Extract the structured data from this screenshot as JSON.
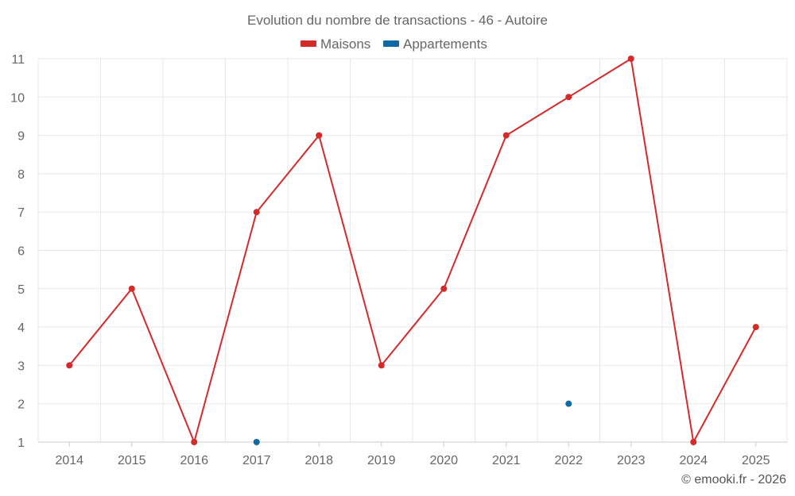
{
  "chart_data": {
    "type": "line",
    "title": "Evolution du nombre de transactions - 46 - Autoire",
    "categories": [
      "2014",
      "2015",
      "2016",
      "2017",
      "2018",
      "2019",
      "2020",
      "2021",
      "2022",
      "2023",
      "2024",
      "2025"
    ],
    "series": [
      {
        "name": "Maisons",
        "color": "#d42a2a",
        "values": [
          3,
          5,
          1,
          7,
          9,
          3,
          5,
          9,
          10,
          11,
          1,
          4
        ]
      },
      {
        "name": "Appartements",
        "color": "#0f6aa3",
        "values": [
          null,
          null,
          null,
          1,
          null,
          null,
          null,
          null,
          2,
          null,
          null,
          null
        ]
      }
    ],
    "yticks": [
      "1",
      "2",
      "3",
      "4",
      "5",
      "6",
      "7",
      "8",
      "9",
      "10",
      "11"
    ],
    "ylim": [
      1,
      11
    ],
    "grid": true,
    "legend_position": "top-center",
    "credit": "© emooki.fr - 2026"
  }
}
